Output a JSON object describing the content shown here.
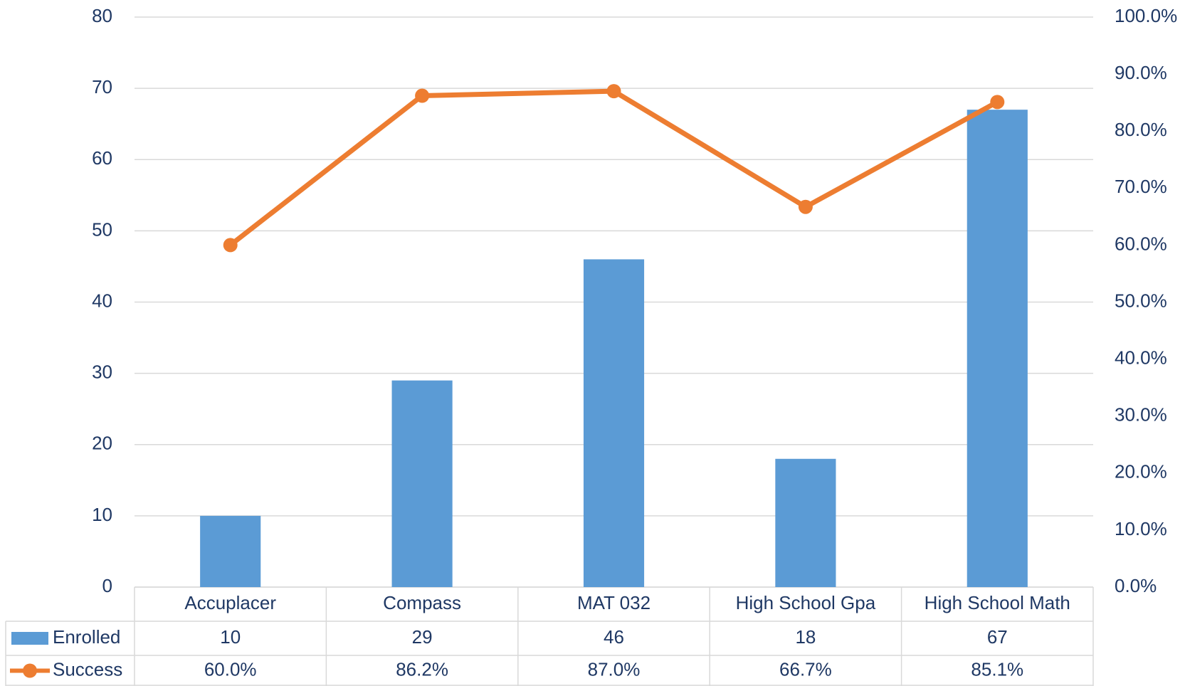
{
  "chart_data": {
    "type": "bar",
    "categories": [
      "Accuplacer",
      "Compass",
      "MAT 032",
      "High School Gpa",
      "High School Math"
    ],
    "series": [
      {
        "name": "Enrolled",
        "type": "bar",
        "color": "#5b9bd5",
        "values": [
          10,
          29,
          46,
          18,
          67
        ]
      },
      {
        "name": "Success",
        "type": "line",
        "axis": "y2",
        "color": "#ed7d31",
        "values": [
          60.0,
          86.2,
          87.0,
          66.7,
          85.1
        ],
        "value_labels": [
          "60.0%",
          "86.2%",
          "87.0%",
          "66.7%",
          "85.1%"
        ]
      }
    ],
    "ylim": [
      0,
      80
    ],
    "yticks": [
      0,
      10,
      20,
      30,
      40,
      50,
      60,
      70,
      80
    ],
    "y2lim": [
      0,
      100
    ],
    "y2ticks": [
      {
        "value": 0,
        "label": "0.0%"
      },
      {
        "value": 10,
        "label": "10.0%"
      },
      {
        "value": 20,
        "label": "20.0%"
      },
      {
        "value": 30,
        "label": "30.0%"
      },
      {
        "value": 40,
        "label": "40.0%"
      },
      {
        "value": 50,
        "label": "50.0%"
      },
      {
        "value": 60,
        "label": "60.0%"
      },
      {
        "value": 70,
        "label": "70.0%"
      },
      {
        "value": 80,
        "label": "80.0%"
      },
      {
        "value": 90,
        "label": "90.0%"
      },
      {
        "value": 100,
        "label": "100.0%"
      }
    ],
    "grid": true,
    "data_table": true
  }
}
